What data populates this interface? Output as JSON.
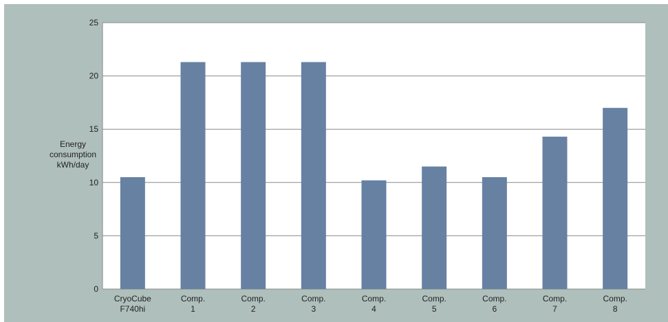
{
  "chart_data": {
    "type": "bar",
    "categories": [
      [
        "CryoCube",
        "F740hi"
      ],
      [
        "Comp.",
        "1"
      ],
      [
        "Comp.",
        "2"
      ],
      [
        "Comp.",
        "3"
      ],
      [
        "Comp.",
        "4"
      ],
      [
        "Comp.",
        "5"
      ],
      [
        "Comp.",
        "6"
      ],
      [
        "Comp.",
        "7"
      ],
      [
        "Comp.",
        "8"
      ]
    ],
    "values": [
      10.5,
      21.3,
      21.3,
      21.3,
      10.2,
      11.5,
      10.5,
      14.3,
      17.0
    ],
    "title": "",
    "xlabel": "",
    "ylabel": [
      "Energy",
      "consumption",
      "kWh/day"
    ],
    "ylim": [
      0,
      25
    ],
    "yticks": [
      "0",
      "5",
      "10",
      "15",
      "20",
      "25"
    ],
    "grid": true,
    "legend": "none",
    "colors": {
      "background": "#afbfbb",
      "plot_area": "#ffffff",
      "bar": "#6781a2",
      "grid": "#8a8a8a"
    }
  }
}
